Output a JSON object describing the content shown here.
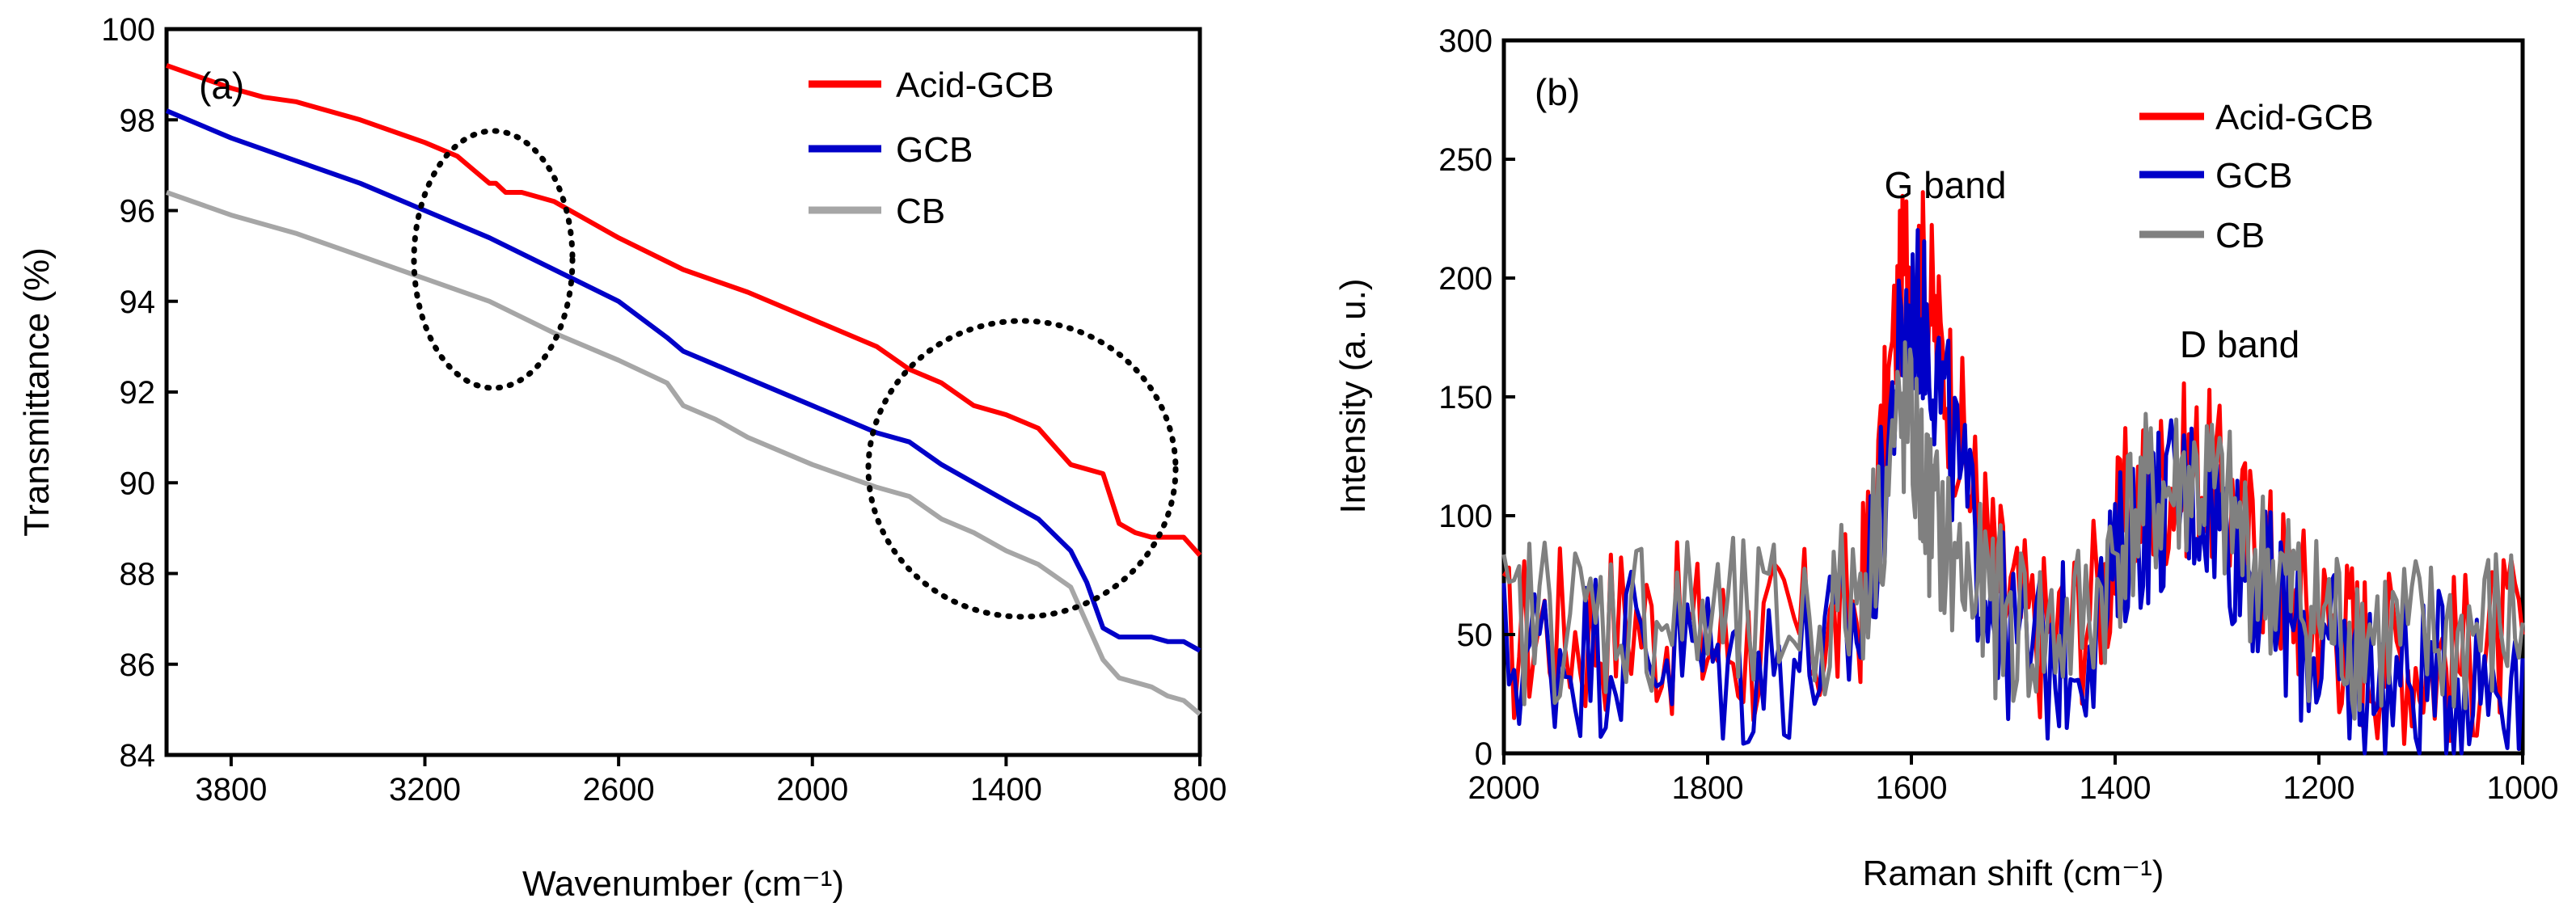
{
  "chart_data": [
    {
      "type": "line",
      "panel_label": "(a)",
      "xlabel": "Wavenumber (cm⁻¹)",
      "ylabel": "Transmittance (%)",
      "xlim": [
        4000,
        800
      ],
      "ylim": [
        84,
        100
      ],
      "x_ticks": [
        3800,
        3200,
        2600,
        2000,
        1400,
        800
      ],
      "y_ticks": [
        84,
        86,
        88,
        90,
        92,
        94,
        96,
        98,
        100
      ],
      "x_tick_labels": [
        "3800",
        "3200",
        "2600",
        "2000",
        "1400",
        "800"
      ],
      "y_tick_labels": [
        "84",
        "86",
        "88",
        "90",
        "92",
        "94",
        "96",
        "98",
        "100"
      ],
      "grid": false,
      "legend_position": "top-right",
      "series": [
        {
          "name": "Acid-GCB",
          "color": "#ff0000",
          "x": [
            4000,
            3800,
            3700,
            3600,
            3400,
            3200,
            3100,
            3050,
            3000,
            2980,
            2950,
            2900,
            2800,
            2700,
            2600,
            2400,
            2200,
            2000,
            1800,
            1700,
            1600,
            1500,
            1400,
            1300,
            1250,
            1200,
            1100,
            1050,
            1000,
            950,
            900,
            850,
            800
          ],
          "y": [
            99.2,
            98.7,
            98.5,
            98.4,
            98.0,
            97.5,
            97.2,
            96.9,
            96.6,
            96.6,
            96.4,
            96.4,
            96.2,
            95.8,
            95.4,
            94.7,
            94.2,
            93.6,
            93.0,
            92.5,
            92.2,
            91.7,
            91.5,
            91.2,
            90.8,
            90.4,
            90.2,
            89.1,
            88.9,
            88.8,
            88.8,
            88.8,
            88.4
          ]
        },
        {
          "name": "GCB",
          "color": "#0000c8",
          "x": [
            4000,
            3800,
            3600,
            3400,
            3200,
            3000,
            2800,
            2600,
            2450,
            2400,
            2300,
            2200,
            2000,
            1800,
            1700,
            1600,
            1500,
            1400,
            1300,
            1200,
            1150,
            1100,
            1050,
            1000,
            950,
            900,
            850,
            800
          ],
          "y": [
            98.2,
            97.6,
            97.1,
            96.6,
            96.0,
            95.4,
            94.7,
            94.0,
            93.2,
            92.9,
            92.6,
            92.3,
            91.7,
            91.1,
            90.9,
            90.4,
            90.0,
            89.6,
            89.2,
            88.5,
            87.8,
            86.8,
            86.6,
            86.6,
            86.6,
            86.5,
            86.5,
            86.3
          ]
        },
        {
          "name": "CB",
          "color": "#a6a6a6",
          "x": [
            4000,
            3800,
            3600,
            3400,
            3200,
            3000,
            2800,
            2600,
            2450,
            2400,
            2300,
            2200,
            2000,
            1800,
            1700,
            1600,
            1500,
            1400,
            1300,
            1200,
            1150,
            1100,
            1050,
            1000,
            950,
            900,
            850,
            800
          ],
          "y": [
            96.4,
            95.9,
            95.5,
            95.0,
            94.5,
            94.0,
            93.3,
            92.7,
            92.2,
            91.7,
            91.4,
            91.0,
            90.4,
            89.9,
            89.7,
            89.2,
            88.9,
            88.5,
            88.2,
            87.7,
            86.9,
            86.1,
            85.7,
            85.6,
            85.5,
            85.3,
            85.2,
            84.9
          ]
        }
      ]
    },
    {
      "type": "line",
      "panel_label": "(b)",
      "xlabel": "Raman shift (cm⁻¹)",
      "ylabel": "Intensity (a. u.)",
      "xlim": [
        2000,
        1000
      ],
      "ylim": [
        0,
        300
      ],
      "x_ticks": [
        2000,
        1800,
        1600,
        1400,
        1200,
        1000
      ],
      "y_ticks": [
        0,
        50,
        100,
        150,
        200,
        250,
        300
      ],
      "x_tick_labels": [
        "2000",
        "1800",
        "1600",
        "1400",
        "1200",
        "1000"
      ],
      "y_tick_labels": [
        "0",
        "50",
        "100",
        "150",
        "200",
        "250",
        "300"
      ],
      "grid": false,
      "legend_position": "top-right",
      "annotations": [
        "G band",
        "D band"
      ],
      "series": [
        {
          "name": "Acid-GCB",
          "color": "#ff0000",
          "x": [
            2000,
            1960,
            1920,
            1880,
            1840,
            1800,
            1760,
            1720,
            1680,
            1650,
            1630,
            1615,
            1605,
            1595,
            1585,
            1575,
            1560,
            1540,
            1520,
            1500,
            1470,
            1440,
            1410,
            1390,
            1370,
            1350,
            1330,
            1310,
            1290,
            1270,
            1250,
            1230,
            1210,
            1190,
            1170,
            1150,
            1120,
            1090,
            1060,
            1030,
            1000
          ],
          "y": [
            45,
            55,
            50,
            58,
            52,
            48,
            45,
            50,
            50,
            65,
            120,
            180,
            210,
            205,
            200,
            175,
            150,
            110,
            80,
            60,
            50,
            55,
            70,
            100,
            110,
            115,
            120,
            118,
            105,
            90,
            80,
            70,
            60,
            55,
            50,
            45,
            42,
            40,
            40,
            45,
            50
          ]
        },
        {
          "name": "GCB",
          "color": "#0000c8",
          "x": [
            2000,
            1960,
            1920,
            1880,
            1840,
            1800,
            1760,
            1720,
            1680,
            1650,
            1630,
            1615,
            1605,
            1595,
            1585,
            1575,
            1560,
            1540,
            1520,
            1500,
            1470,
            1440,
            1410,
            1390,
            1370,
            1350,
            1330,
            1310,
            1290,
            1270,
            1250,
            1230,
            1210,
            1190,
            1170,
            1150,
            1120,
            1090,
            1060,
            1030,
            1000
          ],
          "y": [
            40,
            45,
            42,
            48,
            45,
            38,
            35,
            40,
            42,
            55,
            100,
            160,
            180,
            185,
            180,
            160,
            130,
            90,
            65,
            45,
            40,
            45,
            60,
            90,
            100,
            105,
            110,
            108,
            95,
            80,
            65,
            55,
            45,
            40,
            35,
            30,
            30,
            30,
            32,
            35,
            40
          ]
        },
        {
          "name": "CB",
          "color": "#808080",
          "x": [
            2000,
            1960,
            1920,
            1880,
            1840,
            1800,
            1760,
            1720,
            1680,
            1650,
            1630,
            1615,
            1605,
            1595,
            1585,
            1575,
            1560,
            1540,
            1520,
            1500,
            1470,
            1440,
            1410,
            1390,
            1370,
            1350,
            1330,
            1310,
            1290,
            1270,
            1250,
            1230,
            1210,
            1190,
            1170,
            1150,
            1120,
            1090,
            1060,
            1030,
            1000
          ],
          "y": [
            50,
            60,
            55,
            62,
            58,
            55,
            52,
            55,
            58,
            70,
            100,
            135,
            140,
            125,
            105,
            95,
            80,
            70,
            62,
            55,
            50,
            52,
            70,
            95,
            105,
            108,
            115,
            112,
            100,
            85,
            75,
            68,
            60,
            55,
            52,
            50,
            48,
            46,
            48,
            52,
            55
          ]
        }
      ]
    }
  ]
}
